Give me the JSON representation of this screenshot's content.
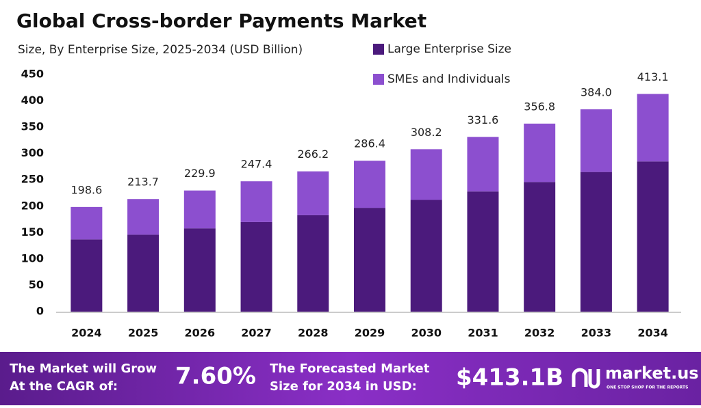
{
  "chart_data": {
    "type": "stacked-bar",
    "title": "Global Cross-border Payments Market",
    "subtitle": "Size, By Enterprise Size, 2025-2034 (USD Billion)",
    "categories": [
      "2024",
      "2025",
      "2026",
      "2027",
      "2028",
      "2029",
      "2030",
      "2031",
      "2032",
      "2033",
      "2034"
    ],
    "series": [
      {
        "name": "Large Enterprise Size",
        "color": "#4b1a7c",
        "values": [
          137,
          146,
          158,
          170,
          183,
          197,
          212,
          228,
          246,
          265,
          285
        ]
      },
      {
        "name": "SMEs and Individuals",
        "color": "#8c4fcf",
        "values": [
          61.6,
          67.7,
          71.9,
          77.4,
          83.2,
          89.4,
          96.2,
          103.6,
          110.8,
          119.0,
          128.1
        ]
      }
    ],
    "totals": [
      198.6,
      213.7,
      229.9,
      247.4,
      266.2,
      286.4,
      308.2,
      331.6,
      356.8,
      384.0,
      413.1
    ],
    "total_labels": [
      "198.6",
      "213.7",
      "229.9",
      "247.4",
      "266.2",
      "286.4",
      "308.2",
      "331.6",
      "356.8",
      "384.0",
      "413.1"
    ],
    "ylim": [
      0,
      450
    ],
    "yticks": [
      0,
      50,
      100,
      150,
      200,
      250,
      300,
      350,
      400,
      450
    ],
    "grid": false,
    "legend_position": "top-right"
  },
  "banner": {
    "cagr_text": [
      "The Market will Grow",
      "At the CAGR of:"
    ],
    "cagr_value": "7.60%",
    "forecast_text": [
      "The Forecasted Market",
      "Size for 2034 in USD:"
    ],
    "forecast_value": "$413.1B",
    "brand": "market.us",
    "tagline": "ONE STOP SHOP FOR THE REPORTS"
  }
}
